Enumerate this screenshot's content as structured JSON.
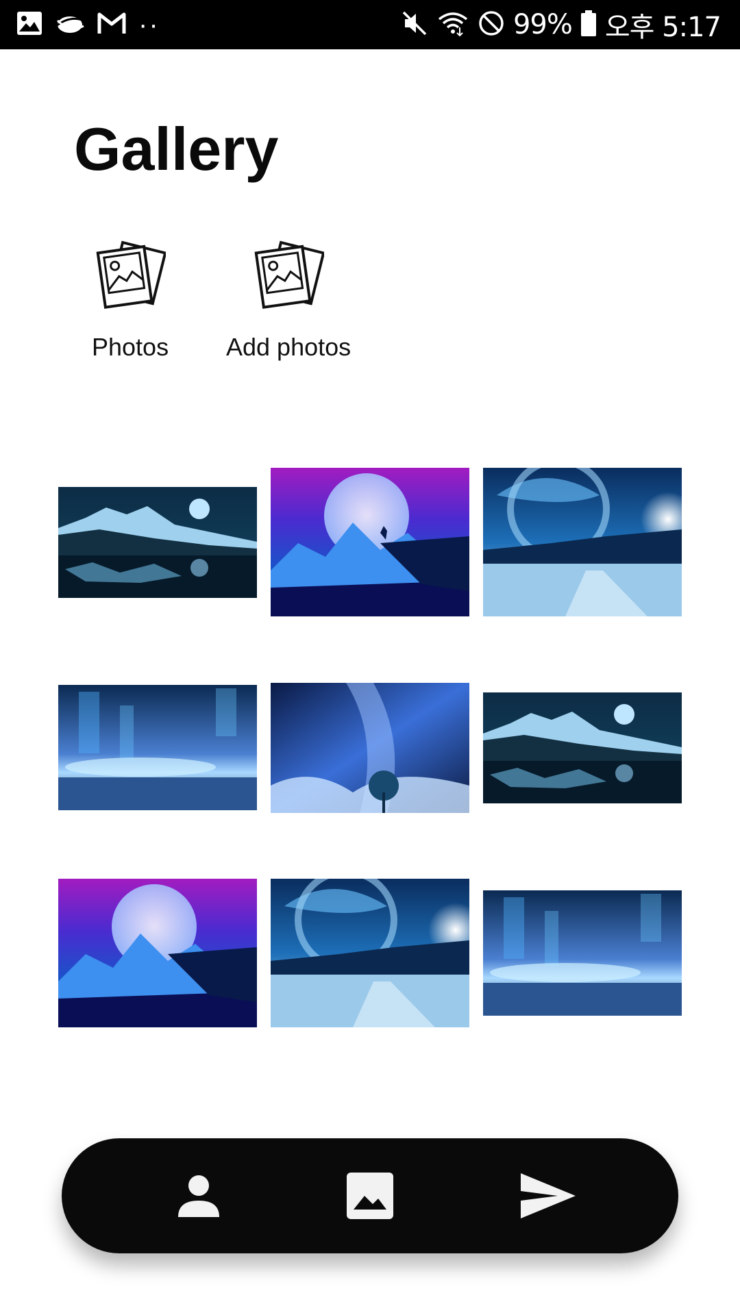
{
  "status_bar": {
    "battery_percent": "99%",
    "time": "오후 5:17",
    "left_icons": [
      "gallery-notification-icon",
      "cloud-notification-icon",
      "gmail-icon",
      "more-notifications-icon"
    ],
    "right_icons": [
      "mute-icon",
      "wifi-icon",
      "do-not-disturb-icon",
      "battery-icon"
    ]
  },
  "header": {
    "title": "Gallery"
  },
  "actions": [
    {
      "label": "Photos",
      "icon": "photos-icon"
    },
    {
      "label": "Add photos",
      "icon": "add-photos-icon"
    }
  ],
  "gallery": {
    "items": [
      {
        "scene": "moon-lake"
      },
      {
        "scene": "wolf-moon"
      },
      {
        "scene": "crescent-snow"
      },
      {
        "scene": "aurora-sea"
      },
      {
        "scene": "galaxy-tree"
      },
      {
        "scene": "moon-lake"
      },
      {
        "scene": "wolf-moon"
      },
      {
        "scene": "crescent-snow"
      },
      {
        "scene": "aurora-sea"
      }
    ]
  },
  "bottom_nav": {
    "items": [
      {
        "icon": "person-icon"
      },
      {
        "icon": "image-icon"
      },
      {
        "icon": "send-icon"
      }
    ]
  },
  "colors": {
    "nav_background": "#0a0a0a",
    "nav_icon": "#f2f2f2",
    "status_bar": "#000000",
    "title_text": "#0a0a0a"
  }
}
